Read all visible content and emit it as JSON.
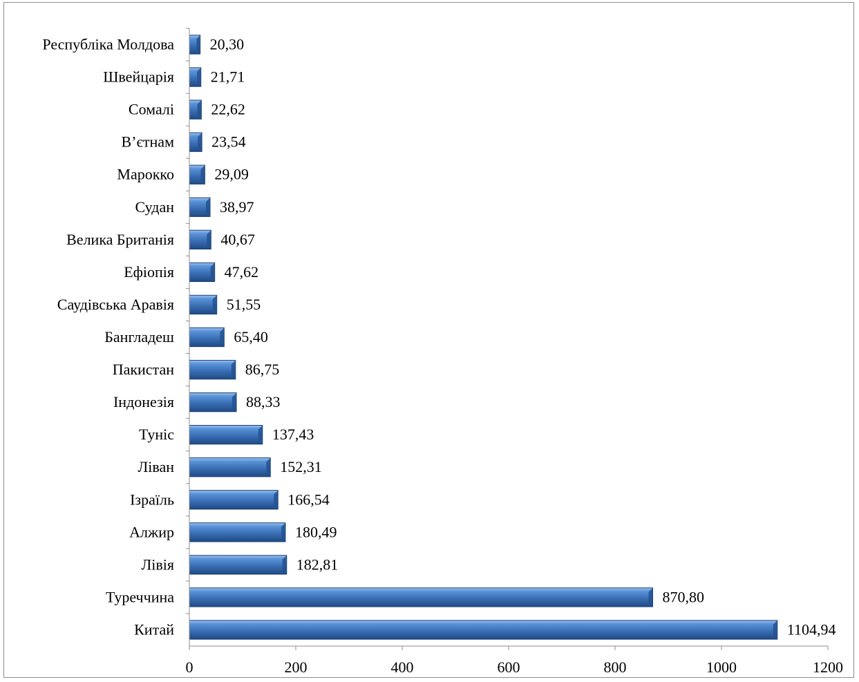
{
  "chart_data": {
    "type": "bar",
    "orientation": "horizontal",
    "title": "",
    "xlabel": "",
    "ylabel": "",
    "xlim": [
      0,
      1200
    ],
    "xticks": [
      0,
      200,
      400,
      600,
      800,
      1000,
      1200
    ],
    "grid": false,
    "bar_color": "#3a6fb5",
    "categories": [
      "Республіка Молдова",
      "Швейцарія",
      "Сомалі",
      "В’єтнам",
      "Марокко",
      "Судан",
      "Велика Британія",
      "Ефіопія",
      "Саудівська Аравія",
      "Бангладеш",
      "Пакистан",
      "Індонезія",
      "Туніс",
      "Ліван",
      "Ізраїль",
      "Алжир",
      "Лівія",
      "Туреччина",
      "Китай"
    ],
    "values": [
      20.3,
      21.71,
      22.62,
      23.54,
      29.09,
      38.97,
      40.67,
      47.62,
      51.55,
      65.4,
      86.75,
      88.33,
      137.43,
      152.31,
      166.54,
      180.49,
      182.81,
      870.8,
      1104.94
    ],
    "value_labels": [
      "20,30",
      "21,71",
      "22,62",
      "23,54",
      "29,09",
      "38,97",
      "40,67",
      "47,62",
      "51,55",
      "65,40",
      "86,75",
      "88,33",
      "137,43",
      "152,31",
      "166,54",
      "180,49",
      "182,81",
      "870,80",
      "1104,94"
    ]
  }
}
